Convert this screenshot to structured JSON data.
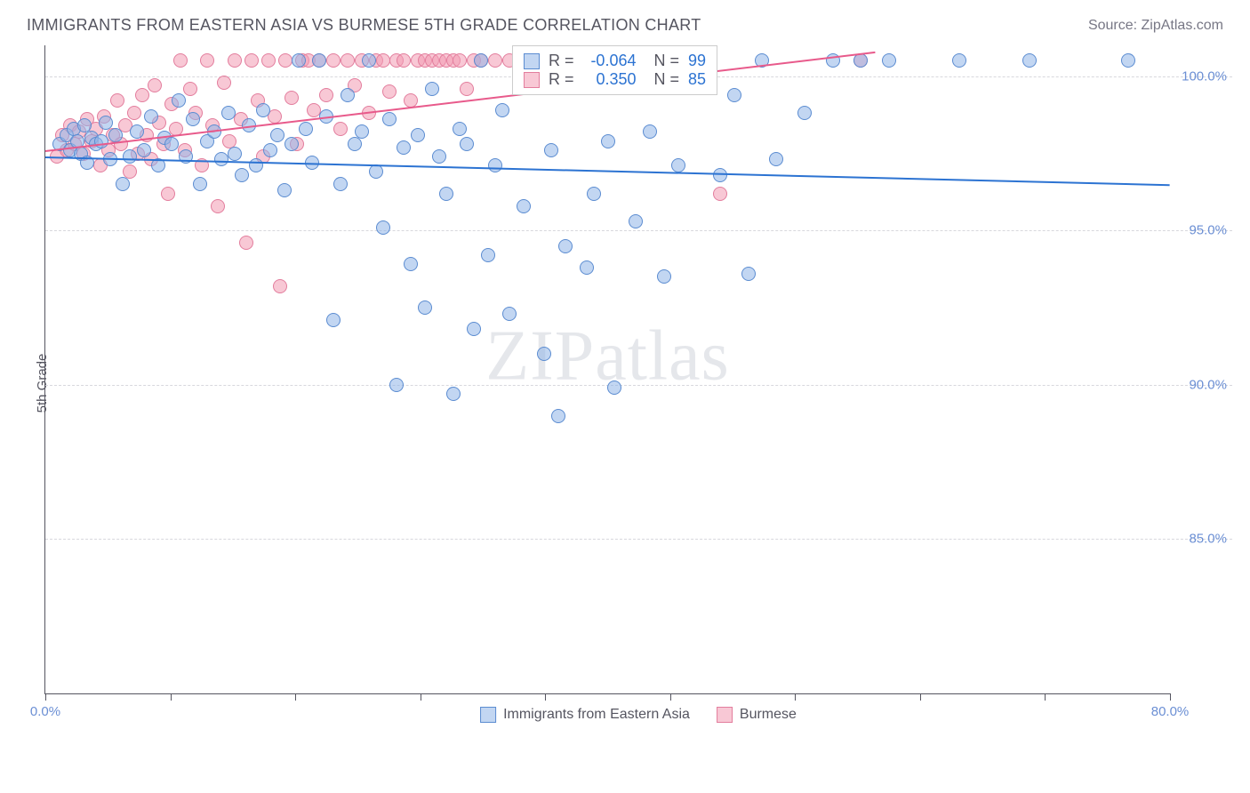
{
  "header": {
    "title": "IMMIGRANTS FROM EASTERN ASIA VS BURMESE 5TH GRADE CORRELATION CHART",
    "source": "Source: ZipAtlas.com"
  },
  "watermark": "ZIPatlas",
  "chart": {
    "type": "scatter",
    "ylabel": "5th Grade",
    "xlim": [
      0,
      80
    ],
    "ylim": [
      80,
      101
    ],
    "xtick_positions": [
      0,
      8.89,
      17.78,
      26.67,
      35.56,
      44.44,
      53.33,
      62.22,
      71.11,
      80
    ],
    "xtick_labels": {
      "first": "0.0%",
      "last": "80.0%"
    },
    "ytick_positions": [
      85,
      90,
      95,
      100
    ],
    "ytick_labels": [
      "85.0%",
      "90.0%",
      "95.0%",
      "100.0%"
    ],
    "background_color": "#ffffff",
    "grid_color": "#d8d8dd",
    "axis_color": "#555560",
    "watermark_color": "rgba(150,160,175,0.25)",
    "marker_radius": 8,
    "series": {
      "blue": {
        "label": "Immigrants from Eastern Asia",
        "color_fill": "rgba(144,180,232,0.55)",
        "color_stroke": "#5b8cd1",
        "trend_color": "#2c73d2",
        "R": "-0.064",
        "N": "99",
        "trend": {
          "x1": 0,
          "y1": 97.4,
          "x2": 80,
          "y2": 96.5
        },
        "points": [
          [
            1,
            97.8
          ],
          [
            1.5,
            98.1
          ],
          [
            1.8,
            97.6
          ],
          [
            2,
            98.3
          ],
          [
            2.3,
            97.9
          ],
          [
            2.5,
            97.5
          ],
          [
            2.8,
            98.4
          ],
          [
            3,
            97.2
          ],
          [
            3.3,
            98
          ],
          [
            3.6,
            97.8
          ],
          [
            4,
            97.9
          ],
          [
            4.3,
            98.5
          ],
          [
            4.6,
            97.3
          ],
          [
            5,
            98.1
          ],
          [
            5.5,
            96.5
          ],
          [
            6,
            97.4
          ],
          [
            6.5,
            98.2
          ],
          [
            7,
            97.6
          ],
          [
            7.5,
            98.7
          ],
          [
            8,
            97.1
          ],
          [
            8.5,
            98
          ],
          [
            9,
            97.8
          ],
          [
            9.5,
            99.2
          ],
          [
            10,
            97.4
          ],
          [
            10.5,
            98.6
          ],
          [
            11,
            96.5
          ],
          [
            11.5,
            97.9
          ],
          [
            12,
            98.2
          ],
          [
            12.5,
            97.3
          ],
          [
            13,
            98.8
          ],
          [
            13.5,
            97.5
          ],
          [
            14,
            96.8
          ],
          [
            14.5,
            98.4
          ],
          [
            15,
            97.1
          ],
          [
            15.5,
            98.9
          ],
          [
            16,
            97.6
          ],
          [
            16.5,
            98.1
          ],
          [
            17,
            96.3
          ],
          [
            17.5,
            97.8
          ],
          [
            18,
            100.5
          ],
          [
            18.5,
            98.3
          ],
          [
            19,
            97.2
          ],
          [
            19.5,
            100.5
          ],
          [
            20,
            98.7
          ],
          [
            20.5,
            92.1
          ],
          [
            21,
            96.5
          ],
          [
            21.5,
            99.4
          ],
          [
            22,
            97.8
          ],
          [
            22.5,
            98.2
          ],
          [
            23,
            100.5
          ],
          [
            23.5,
            96.9
          ],
          [
            24,
            95.1
          ],
          [
            24.5,
            98.6
          ],
          [
            25,
            90
          ],
          [
            25.5,
            97.7
          ],
          [
            26,
            93.9
          ],
          [
            26.5,
            98.1
          ],
          [
            27,
            92.5
          ],
          [
            27.5,
            99.6
          ],
          [
            28,
            97.4
          ],
          [
            28.5,
            96.2
          ],
          [
            29,
            89.7
          ],
          [
            29.5,
            98.3
          ],
          [
            30,
            97.8
          ],
          [
            30.5,
            91.8
          ],
          [
            31,
            100.5
          ],
          [
            31.5,
            94.2
          ],
          [
            32,
            97.1
          ],
          [
            32.5,
            98.9
          ],
          [
            33,
            92.3
          ],
          [
            34,
            95.8
          ],
          [
            35,
            100.5
          ],
          [
            35.5,
            91
          ],
          [
            36,
            97.6
          ],
          [
            36.5,
            89
          ],
          [
            37,
            94.5
          ],
          [
            38,
            100.5
          ],
          [
            38.5,
            93.8
          ],
          [
            39,
            96.2
          ],
          [
            40,
            97.9
          ],
          [
            40.5,
            89.9
          ],
          [
            41,
            100.5
          ],
          [
            42,
            95.3
          ],
          [
            43,
            98.2
          ],
          [
            44,
            93.5
          ],
          [
            45,
            97.1
          ],
          [
            47,
            100.5
          ],
          [
            48,
            96.8
          ],
          [
            49,
            99.4
          ],
          [
            50,
            93.6
          ],
          [
            51,
            100.5
          ],
          [
            52,
            97.3
          ],
          [
            54,
            98.8
          ],
          [
            56,
            100.5
          ],
          [
            58,
            100.5
          ],
          [
            60,
            100.5
          ],
          [
            65,
            100.5
          ],
          [
            70,
            100.5
          ],
          [
            77,
            100.5
          ]
        ]
      },
      "pink": {
        "label": "Burmese",
        "color_fill": "rgba(242,155,178,0.55)",
        "color_stroke": "#e37d9d",
        "trend_color": "#e85a8b",
        "R": "0.350",
        "N": "85",
        "trend": {
          "x1": 0,
          "y1": 97.6,
          "x2": 59,
          "y2": 100.8
        },
        "points": [
          [
            0.8,
            97.4
          ],
          [
            1.2,
            98.1
          ],
          [
            1.5,
            97.6
          ],
          [
            1.8,
            98.4
          ],
          [
            2.1,
            97.8
          ],
          [
            2.4,
            98.2
          ],
          [
            2.7,
            97.5
          ],
          [
            3,
            98.6
          ],
          [
            3.3,
            97.9
          ],
          [
            3.6,
            98.3
          ],
          [
            3.9,
            97.1
          ],
          [
            4.2,
            98.7
          ],
          [
            4.5,
            97.6
          ],
          [
            4.8,
            98.1
          ],
          [
            5.1,
            99.2
          ],
          [
            5.4,
            97.8
          ],
          [
            5.7,
            98.4
          ],
          [
            6,
            96.9
          ],
          [
            6.3,
            98.8
          ],
          [
            6.6,
            97.5
          ],
          [
            6.9,
            99.4
          ],
          [
            7.2,
            98.1
          ],
          [
            7.5,
            97.3
          ],
          [
            7.8,
            99.7
          ],
          [
            8.1,
            98.5
          ],
          [
            8.4,
            97.8
          ],
          [
            8.7,
            96.2
          ],
          [
            9,
            99.1
          ],
          [
            9.3,
            98.3
          ],
          [
            9.6,
            100.5
          ],
          [
            9.9,
            97.6
          ],
          [
            10.3,
            99.6
          ],
          [
            10.7,
            98.8
          ],
          [
            11.1,
            97.1
          ],
          [
            11.5,
            100.5
          ],
          [
            11.9,
            98.4
          ],
          [
            12.3,
            95.8
          ],
          [
            12.7,
            99.8
          ],
          [
            13.1,
            97.9
          ],
          [
            13.5,
            100.5
          ],
          [
            13.9,
            98.6
          ],
          [
            14.3,
            94.6
          ],
          [
            14.7,
            100.5
          ],
          [
            15.1,
            99.2
          ],
          [
            15.5,
            97.4
          ],
          [
            15.9,
            100.5
          ],
          [
            16.3,
            98.7
          ],
          [
            16.7,
            93.2
          ],
          [
            17.1,
            100.5
          ],
          [
            17.5,
            99.3
          ],
          [
            17.9,
            97.8
          ],
          [
            18.3,
            100.5
          ],
          [
            18.7,
            100.5
          ],
          [
            19.1,
            98.9
          ],
          [
            19.5,
            100.5
          ],
          [
            20,
            99.4
          ],
          [
            20.5,
            100.5
          ],
          [
            21,
            98.3
          ],
          [
            21.5,
            100.5
          ],
          [
            22,
            99.7
          ],
          [
            22.5,
            100.5
          ],
          [
            23,
            98.8
          ],
          [
            23.5,
            100.5
          ],
          [
            24,
            100.5
          ],
          [
            24.5,
            99.5
          ],
          [
            25,
            100.5
          ],
          [
            25.5,
            100.5
          ],
          [
            26,
            99.2
          ],
          [
            26.5,
            100.5
          ],
          [
            27,
            100.5
          ],
          [
            27.5,
            100.5
          ],
          [
            28,
            100.5
          ],
          [
            28.5,
            100.5
          ],
          [
            29,
            100.5
          ],
          [
            29.5,
            100.5
          ],
          [
            30,
            99.6
          ],
          [
            30.5,
            100.5
          ],
          [
            31,
            100.5
          ],
          [
            32,
            100.5
          ],
          [
            33,
            100.5
          ],
          [
            34,
            100.5
          ],
          [
            35,
            100.5
          ],
          [
            37,
            100.5
          ],
          [
            48,
            96.2
          ],
          [
            58,
            100.5
          ]
        ]
      }
    },
    "stat_box": {
      "left_pct": 41.5,
      "top_pct": 0
    }
  },
  "legend": {
    "items": [
      {
        "key": "blue",
        "label": "Immigrants from Eastern Asia"
      },
      {
        "key": "pink",
        "label": "Burmese"
      }
    ]
  }
}
